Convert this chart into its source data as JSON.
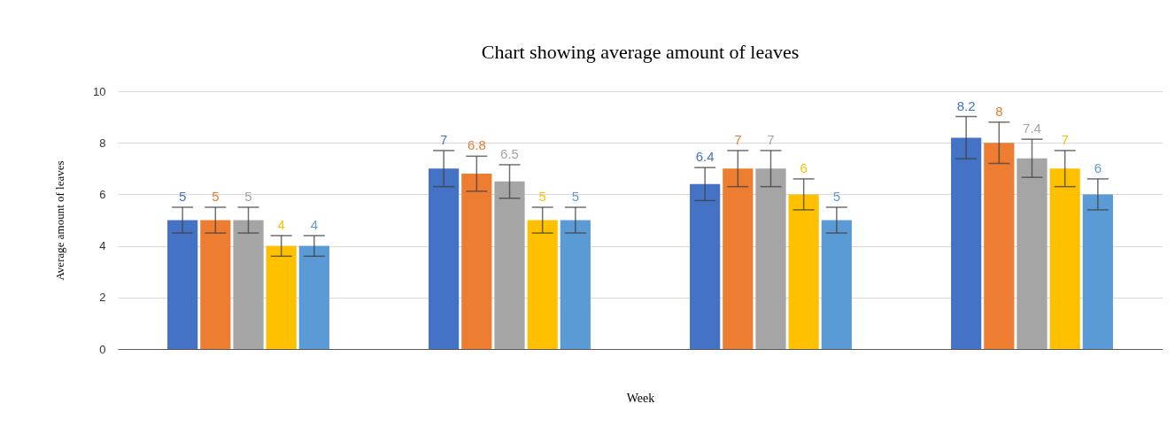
{
  "chart_data": {
    "type": "bar",
    "title": "Chart showing average amount of leaves",
    "xlabel": "Week",
    "ylabel": "Average amount of leaves",
    "categories": [
      null,
      null,
      null,
      null
    ],
    "series": [
      {
        "color": "#4472c4",
        "values": [
          5,
          7,
          6.4,
          8.2
        ],
        "errors": [
          0.5,
          0.7,
          0.64,
          0.82
        ]
      },
      {
        "color": "#ed7d31",
        "values": [
          5,
          6.8,
          7,
          8
        ],
        "errors": [
          0.5,
          0.68,
          0.7,
          0.8
        ]
      },
      {
        "color": "#a5a5a5",
        "values": [
          5,
          6.5,
          7,
          7.4
        ],
        "errors": [
          0.5,
          0.65,
          0.7,
          0.74
        ]
      },
      {
        "color": "#ffc000",
        "values": [
          4,
          5,
          6,
          7
        ],
        "errors": [
          0.4,
          0.5,
          0.6,
          0.7
        ]
      },
      {
        "color": "#5b9bd5",
        "values": [
          4,
          5,
          5,
          6
        ],
        "errors": [
          0.4,
          0.5,
          0.5,
          0.6
        ]
      }
    ],
    "ylim": [
      0,
      10
    ],
    "yticks": [
      0,
      2,
      4,
      6,
      8,
      10
    ],
    "grid": "y",
    "data_labels": true
  }
}
